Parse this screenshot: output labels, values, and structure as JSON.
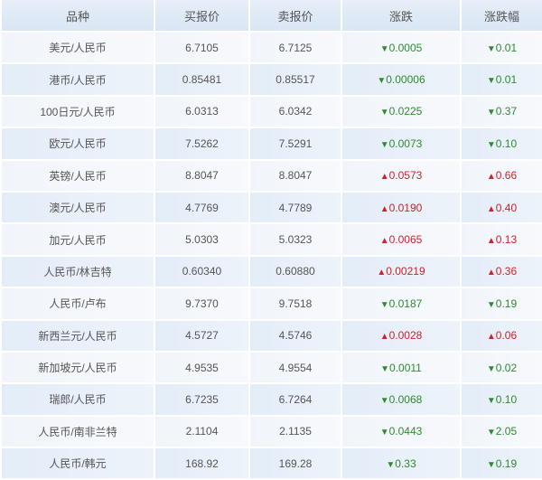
{
  "headers": [
    "品种",
    "买报价",
    "卖报价",
    "涨跌",
    "涨跌幅"
  ],
  "colors": {
    "up": "#d0212a",
    "down": "#2e8b2e"
  },
  "rows": [
    {
      "name": "美元/人民币",
      "bid": "6.7105",
      "ask": "6.7125",
      "dir": "down",
      "change": "0.0005",
      "pct": "0.01"
    },
    {
      "name": "港币/人民币",
      "bid": "0.85481",
      "ask": "0.85517",
      "dir": "down",
      "change": "0.00006",
      "pct": "0.01"
    },
    {
      "name": "100日元/人民币",
      "bid": "6.0313",
      "ask": "6.0342",
      "dir": "down",
      "change": "0.0225",
      "pct": "0.37"
    },
    {
      "name": "欧元/人民币",
      "bid": "7.5262",
      "ask": "7.5291",
      "dir": "down",
      "change": "0.0073",
      "pct": "0.10"
    },
    {
      "name": "英镑/人民币",
      "bid": "8.8047",
      "ask": "8.8047",
      "dir": "up",
      "change": "0.0573",
      "pct": "0.66"
    },
    {
      "name": "澳元/人民币",
      "bid": "4.7769",
      "ask": "4.7789",
      "dir": "up",
      "change": "0.0190",
      "pct": "0.40"
    },
    {
      "name": "加元/人民币",
      "bid": "5.0303",
      "ask": "5.0323",
      "dir": "up",
      "change": "0.0065",
      "pct": "0.13"
    },
    {
      "name": "人民币/林吉特",
      "bid": "0.60340",
      "ask": "0.60880",
      "dir": "up",
      "change": "0.00219",
      "pct": "0.36"
    },
    {
      "name": "人民币/卢布",
      "bid": "9.7370",
      "ask": "9.7518",
      "dir": "down",
      "change": "0.0187",
      "pct": "0.19"
    },
    {
      "name": "新西兰元/人民币",
      "bid": "4.5727",
      "ask": "4.5746",
      "dir": "up",
      "change": "0.0028",
      "pct": "0.06"
    },
    {
      "name": "新加坡元/人民币",
      "bid": "4.9535",
      "ask": "4.9554",
      "dir": "down",
      "change": "0.0011",
      "pct": "0.02"
    },
    {
      "name": "瑞郎/人民币",
      "bid": "6.7235",
      "ask": "6.7264",
      "dir": "down",
      "change": "0.0068",
      "pct": "0.10"
    },
    {
      "name": "人民币/南非兰特",
      "bid": "2.1104",
      "ask": "2.1135",
      "dir": "down",
      "change": "0.0443",
      "pct": "2.05"
    },
    {
      "name": "人民币/韩元",
      "bid": "168.92",
      "ask": "169.28",
      "dir": "down",
      "change": "0.33",
      "pct": "0.19"
    }
  ]
}
